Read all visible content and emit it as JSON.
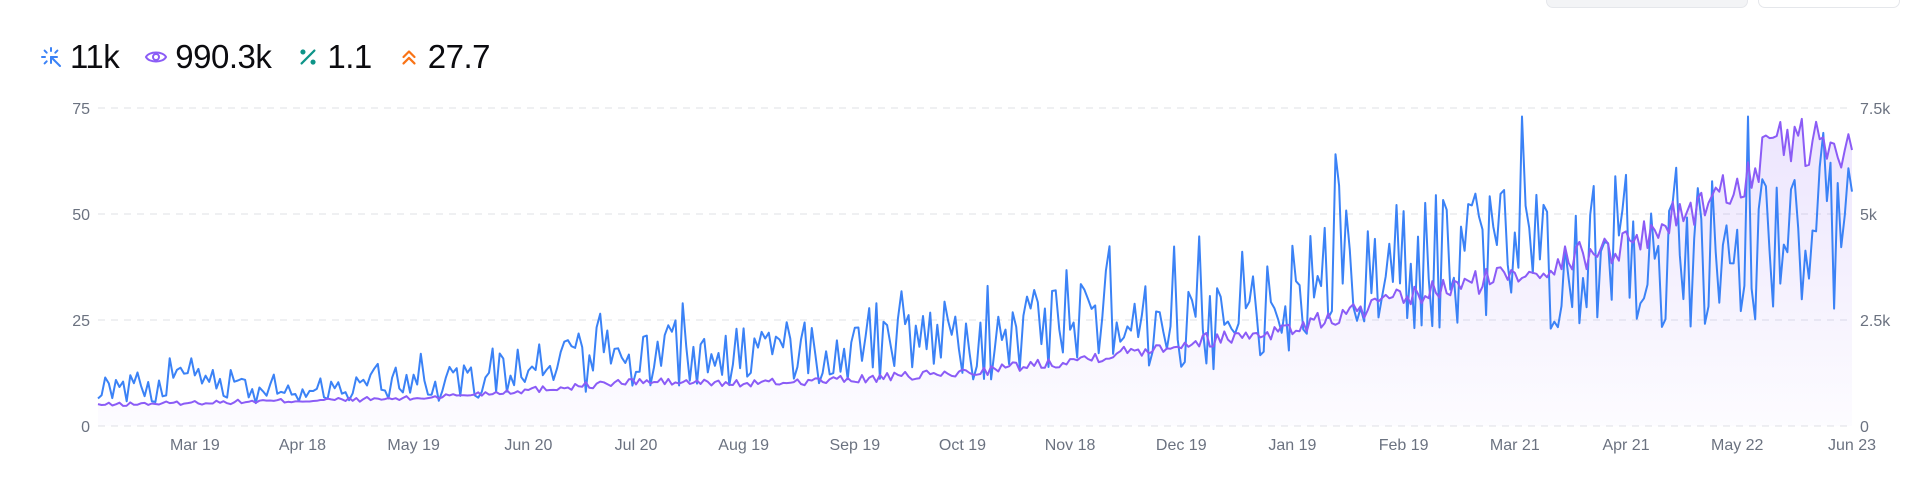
{
  "stats": [
    {
      "icon": "cursor-click-icon",
      "value": "11k",
      "color": "#3b82f6"
    },
    {
      "icon": "eye-icon",
      "value": "990.3k",
      "color": "#8b5cf6"
    },
    {
      "icon": "percent-icon",
      "value": "1.1",
      "color": "#0d9488"
    },
    {
      "icon": "chevrons-up-icon",
      "value": "27.7",
      "color": "#f97316"
    }
  ],
  "chart_data": {
    "type": "line",
    "x_range": [
      "2023-02-20",
      "2024-06-23"
    ],
    "x_tick_labels": [
      "Mar 19",
      "Apr 18",
      "May 19",
      "Jun 20",
      "Jul 20",
      "Aug 19",
      "Sep 19",
      "Oct 19",
      "Nov 18",
      "Dec 19",
      "Jan 19",
      "Feb 19",
      "Mar 21",
      "Apr 21",
      "May 22",
      "Jun 23"
    ],
    "x_tick_dates": [
      "2023-03-19",
      "2023-04-18",
      "2023-05-19",
      "2023-06-20",
      "2023-07-20",
      "2023-08-19",
      "2023-09-19",
      "2023-10-19",
      "2023-11-18",
      "2023-12-19",
      "2024-01-19",
      "2024-02-19",
      "2024-03-21",
      "2024-04-21",
      "2024-05-22",
      "2024-06-23"
    ],
    "y_left": {
      "range": [
        0,
        75
      ],
      "ticks": [
        0,
        25,
        50,
        75
      ],
      "tick_labels": [
        "0",
        "25",
        "50",
        "75"
      ]
    },
    "y_right": {
      "range": [
        0,
        7500
      ],
      "ticks": [
        0,
        2500,
        5000,
        7500
      ],
      "tick_labels": [
        "0",
        "2.5k",
        "5k",
        "7.5k"
      ]
    },
    "grid": true,
    "series": [
      {
        "axis": "left",
        "color": "#3b82f6",
        "x": [
          "2023-02-20",
          "2023-03-10",
          "2023-04-01",
          "2023-05-01",
          "2023-06-01",
          "2023-07-01",
          "2023-08-01",
          "2023-09-01",
          "2023-10-01",
          "2023-11-01",
          "2023-11-18",
          "2023-12-01",
          "2024-01-01",
          "2024-01-19",
          "2024-02-01",
          "2024-02-19",
          "2024-03-01",
          "2024-04-01",
          "2024-05-01",
          "2024-05-15",
          "2024-06-01",
          "2024-06-23"
        ],
        "values": [
          8,
          10,
          9,
          9,
          11,
          14,
          16,
          17,
          18,
          20,
          28,
          25,
          24,
          30,
          35,
          37,
          38,
          40,
          42,
          43,
          40,
          44
        ],
        "jitter_range": [
          4,
          73
        ]
      },
      {
        "axis": "right",
        "color": "#8b5cf6",
        "area": true,
        "x": [
          "2023-02-20",
          "2023-03-19",
          "2023-04-18",
          "2023-05-19",
          "2023-06-20",
          "2023-07-20",
          "2023-08-19",
          "2023-09-19",
          "2023-10-19",
          "2023-11-18",
          "2023-12-19",
          "2024-01-19",
          "2024-02-19",
          "2024-03-21",
          "2024-04-21",
          "2024-05-22",
          "2024-06-05",
          "2024-06-23"
        ],
        "values": [
          500,
          550,
          600,
          650,
          850,
          1050,
          1000,
          1100,
          1250,
          1550,
          1950,
          2300,
          3000,
          3600,
          4300,
          5700,
          6800,
          6400
        ]
      }
    ]
  }
}
